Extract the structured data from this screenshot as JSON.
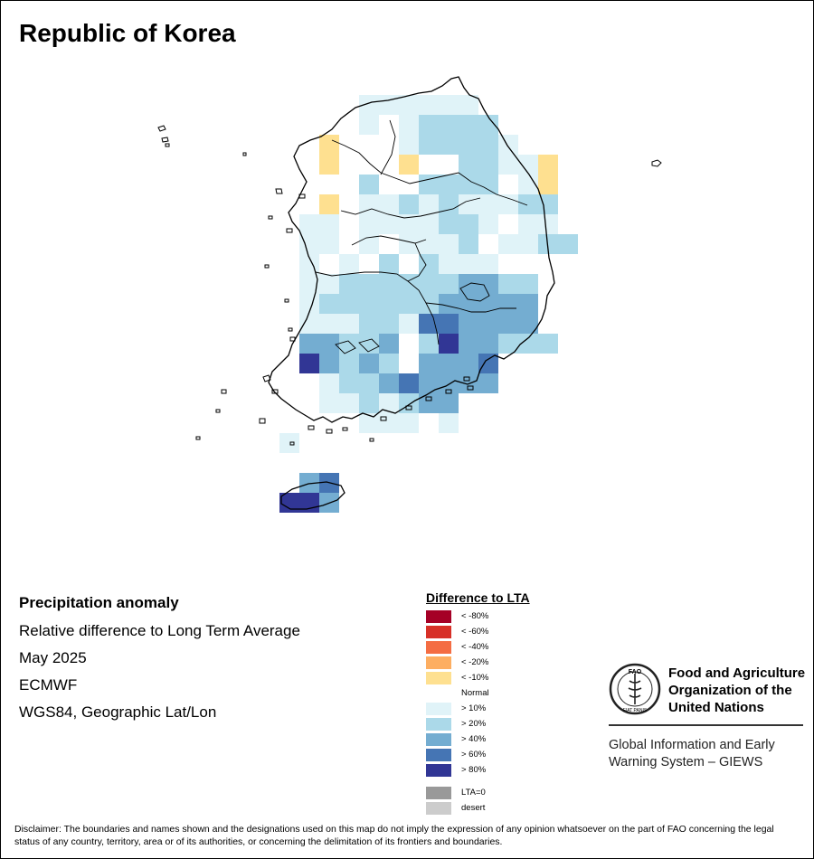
{
  "title": "Republic of Korea",
  "info": {
    "heading": "Precipitation anomaly",
    "subtitle": "Relative difference to Long Term Average",
    "date": "May 2025",
    "source": "ECMWF",
    "projection": "WGS84, Geographic Lat/Lon"
  },
  "legend": {
    "title": "Difference to LTA",
    "items": [
      {
        "label": "< -80%",
        "color": "#a50026"
      },
      {
        "label": "< -60%",
        "color": "#d73027"
      },
      {
        "label": "< -40%",
        "color": "#f46d43"
      },
      {
        "label": "< -20%",
        "color": "#fdae61"
      },
      {
        "label": "< -10%",
        "color": "#fee090"
      },
      {
        "label": "Normal",
        "color": "#ffffff"
      },
      {
        "label": "> 10%",
        "color": "#e0f3f8"
      },
      {
        "label": "> 20%",
        "color": "#abd9e9"
      },
      {
        "label": "> 40%",
        "color": "#74add1"
      },
      {
        "label": "> 60%",
        "color": "#4575b4"
      },
      {
        "label": "> 80%",
        "color": "#313695"
      }
    ],
    "extra": [
      {
        "label": "LTA=0",
        "color": "#999999"
      },
      {
        "label": "desert",
        "color": "#cccccc"
      }
    ]
  },
  "logo": {
    "org_line1": "Food and Agriculture",
    "org_line2": "Organization of the",
    "org_line3": "United Nations",
    "giews_line1": "Global Information and Early",
    "giews_line2": "Warning System – GIEWS",
    "emblem_top": "FAO",
    "emblem_bottom": "FIAT PANIS"
  },
  "disclaimer": "Disclaimer: The boundaries and names shown and the designations used on this map do not imply the expression of any opinion whatsoever on the part of FAO concerning the legal status of any country, territory, area or of its authorities, or concerning the delimitation of its frontiers and boundaries.",
  "map_grid": {
    "description_key": "anomaly class per grid cell",
    "classes": {
      "y": "fee090",
      "1": "e0f3f8",
      "2": "abd9e9",
      "3": "74add1",
      "4": "4575b4",
      "5": "313695"
    }
  }
}
